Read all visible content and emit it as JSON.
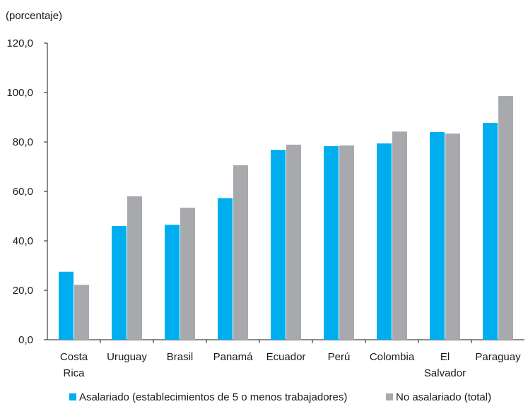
{
  "chart_data": {
    "type": "bar",
    "unit_label": "(porcentaje)",
    "categories": [
      [
        "Costa",
        "Rica"
      ],
      [
        "Uruguay"
      ],
      [
        "Brasil"
      ],
      [
        "Panamá"
      ],
      [
        "Ecuador"
      ],
      [
        "Perú"
      ],
      [
        "Colombia"
      ],
      [
        "El",
        "Salvador"
      ],
      [
        "Paraguay"
      ]
    ],
    "series": [
      {
        "name": "Asalariado (establecimientos de 5 o menos trabajadores)",
        "color": "#00aeef",
        "values": [
          27.5,
          46.0,
          46.5,
          57.3,
          76.8,
          78.3,
          79.4,
          84.0,
          87.7
        ]
      },
      {
        "name": "No asalariado (total)",
        "color": "#a7a9ac",
        "values": [
          22.2,
          58.0,
          53.4,
          70.6,
          78.9,
          78.6,
          84.2,
          83.4,
          98.6
        ]
      }
    ],
    "ylim": [
      0,
      120
    ],
    "yticks": [
      0,
      20,
      40,
      60,
      80,
      100,
      120
    ],
    "ytick_labels": [
      "0,0",
      "20,0",
      "40,0",
      "60,0",
      "80,0",
      "100,0",
      "120,0"
    ],
    "grid": false,
    "legend_position": "bottom"
  }
}
